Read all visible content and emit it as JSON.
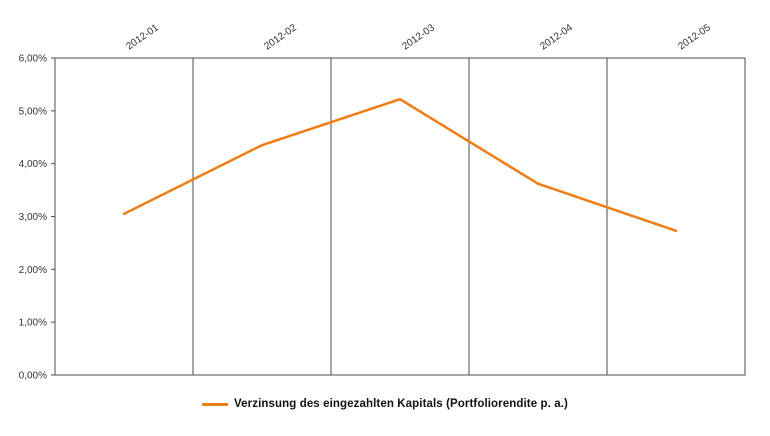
{
  "chart_data": {
    "type": "line",
    "categories": [
      "2012-01",
      "2012-02",
      "2012-03",
      "2012-04",
      "2012-05"
    ],
    "series": [
      {
        "name": "Verzinsung des eingezahlten Kapitals (Portfoliorendite p. a.)",
        "values": [
          3.05,
          4.35,
          5.22,
          3.62,
          2.73
        ]
      }
    ],
    "title": "",
    "xlabel": "",
    "ylabel": "",
    "ylim": [
      0,
      6
    ],
    "ytick_step": 1,
    "ytick_labels": [
      "0,00%",
      "1,00%",
      "2,00%",
      "3,00%",
      "4,00%",
      "5,00%",
      "6,00%"
    ],
    "grid": "vertical-only",
    "legend_position": "bottom",
    "line_color": "#F07D13",
    "grid_color": "#4d4d4d",
    "axis_color": "#4d4d4d",
    "label_color": "#333333"
  },
  "legend": {
    "label": "Verzinsung des eingezahlten Kapitals (Portfoliorendite p. a.)"
  }
}
